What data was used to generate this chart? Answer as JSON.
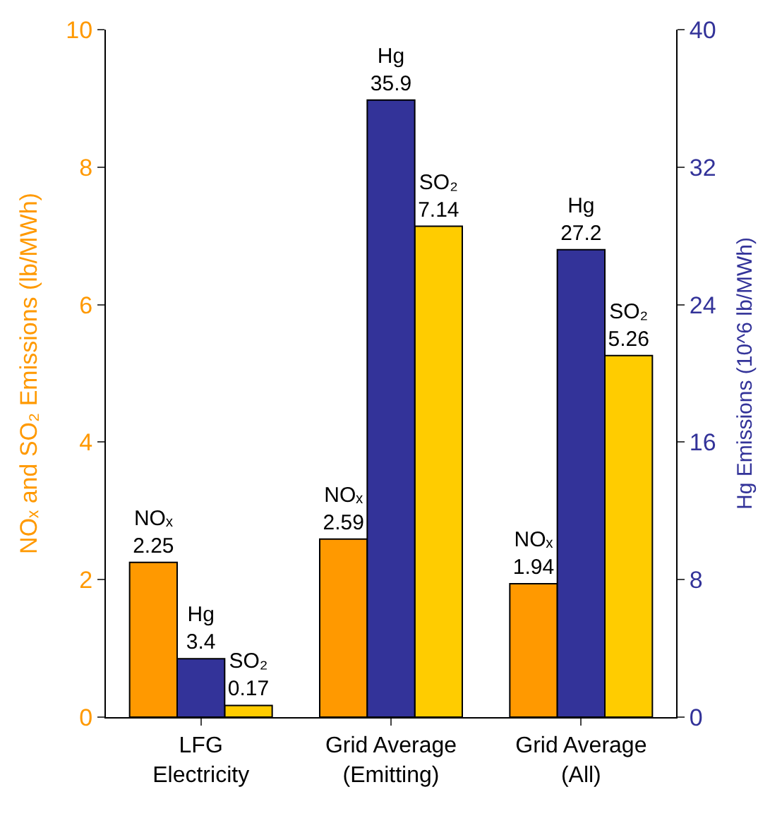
{
  "chart_data": {
    "type": "bar",
    "categories": [
      "LFG\nElectricity",
      "Grid Average\n(Emitting)",
      "Grid Average\n(All)"
    ],
    "series": [
      {
        "name": "NOₓ",
        "color": "#ff9900",
        "values": [
          2.25,
          2.59,
          1.94
        ]
      },
      {
        "name": "Hg",
        "color": "#333399",
        "values": [
          3.4,
          35.9,
          27.2
        ],
        "axis": "y2"
      },
      {
        "name": "SO₂",
        "color": "#ffcc00",
        "values": [
          0.17,
          7.14,
          5.26
        ]
      }
    ],
    "ylabel": "NOₓ and SO₂ Emissions (lb/MWh)",
    "y2label": "Hg Emissions (10^6 lb/MWh)",
    "ylim": [
      0,
      10
    ],
    "yticks": [
      0,
      2,
      4,
      6,
      8,
      10
    ],
    "y2lim": [
      0,
      40
    ],
    "y2ticks": [
      0,
      8,
      16,
      24,
      32,
      40
    ],
    "data_labels": true
  }
}
